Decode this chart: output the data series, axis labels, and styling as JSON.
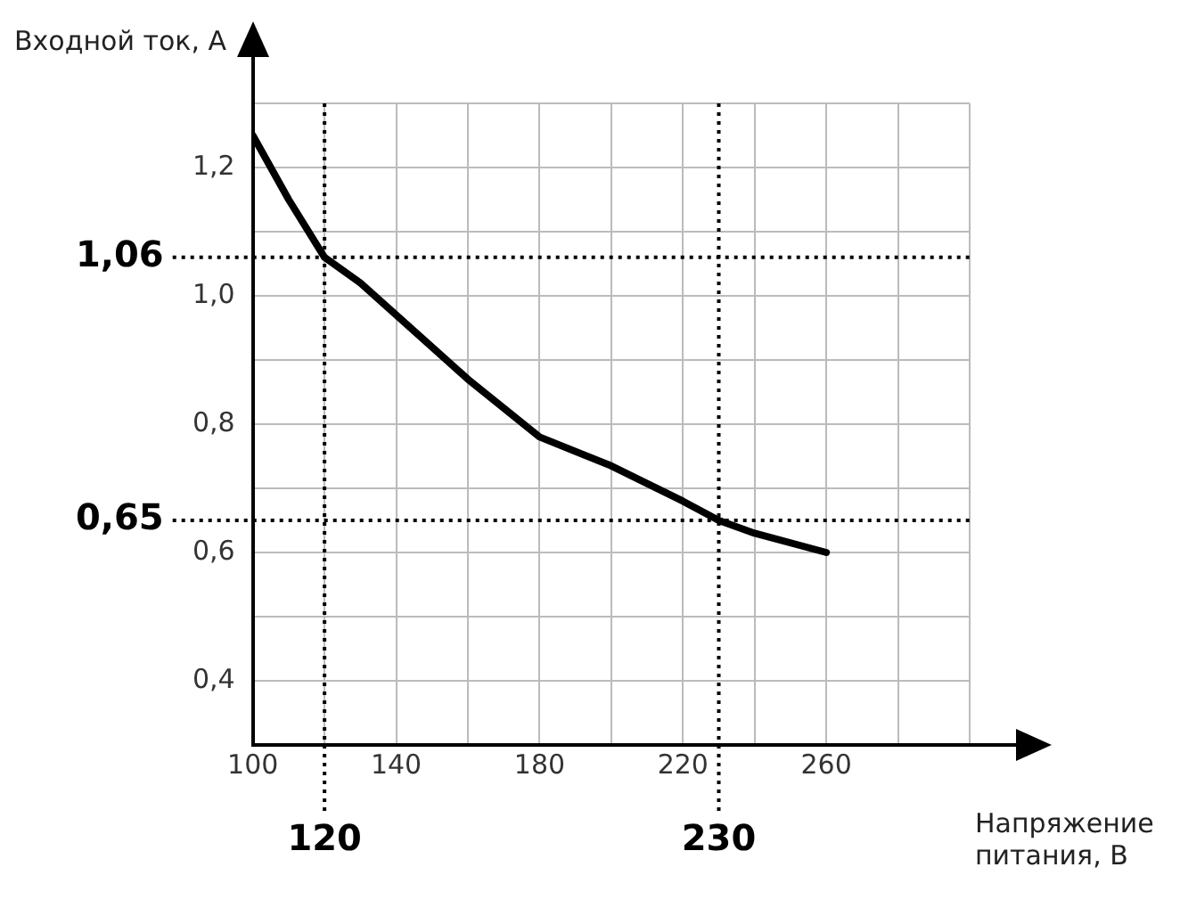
{
  "chart_data": {
    "type": "line",
    "xlabel": "Напряжение питания, В",
    "ylabel": "Входной ток, А",
    "x": [
      100,
      110,
      120,
      130,
      140,
      160,
      180,
      200,
      220,
      230,
      240,
      260
    ],
    "series": [
      {
        "color": "#000000",
        "values": [
          1.25,
          1.15,
          1.06,
          1.02,
          0.97,
          0.87,
          0.78,
          0.735,
          0.68,
          0.65,
          0.63,
          0.6
        ]
      }
    ],
    "xlim": [
      100,
      300
    ],
    "xticks": [
      100,
      {
        "value": 120,
        "label": null
      },
      140,
      {
        "value": 160,
        "label": null
      },
      180,
      {
        "value": 200,
        "label": null
      },
      220,
      {
        "value": 240,
        "label": null
      },
      260,
      {
        "value": 280,
        "label": null
      },
      {
        "value": 300,
        "label": null
      }
    ],
    "ylim": [
      0.3,
      1.3
    ],
    "yticks": [
      {
        "value": 0.3,
        "label": null
      },
      {
        "value": 0.4,
        "label": "0,4"
      },
      {
        "value": 0.5,
        "label": null
      },
      {
        "value": 0.6,
        "label": "0,6"
      },
      {
        "value": 0.7,
        "label": null
      },
      {
        "value": 0.8,
        "label": "0,8"
      },
      {
        "value": 0.9,
        "label": null
      },
      {
        "value": 1.0,
        "label": "1,0"
      },
      {
        "value": 1.1,
        "label": null
      },
      {
        "value": 1.2,
        "label": "1,2"
      },
      {
        "value": 1.3,
        "label": null
      }
    ],
    "ref_lines": [
      {
        "axis": "x",
        "value": 120,
        "label": "120",
        "line_style": "dotted"
      },
      {
        "axis": "x",
        "value": 230,
        "label": "230",
        "line_style": "dotted"
      },
      {
        "axis": "y",
        "value": 1.06,
        "label": "1,06",
        "line_style": "dotted"
      },
      {
        "axis": "y",
        "value": 0.65,
        "label": "0,65",
        "line_style": "dotted"
      }
    ],
    "grid": true,
    "legend": false,
    "marker": "none",
    "line_style": "solid"
  }
}
